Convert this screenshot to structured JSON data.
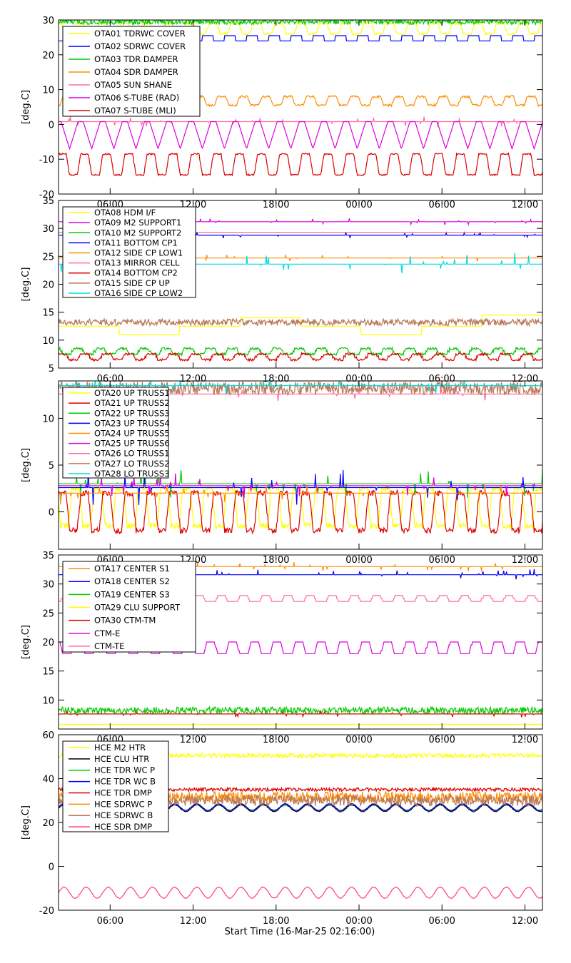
{
  "figure": {
    "xlabel": "Start Time (16-Mar-25 02:16:00)"
  },
  "chart_data": [
    {
      "type": "line",
      "ylabel": "[deg.C]",
      "ylim": [
        -20,
        30
      ],
      "yticks": [
        -20,
        -10,
        0,
        10,
        20,
        30
      ],
      "xlim": [
        0,
        35.0
      ],
      "xtick_positions": [
        3.733,
        9.733,
        15.733,
        21.733,
        27.733,
        33.733
      ],
      "xtick_labels": [
        "06:00",
        "12:00",
        "18:00",
        "00:00",
        "06:00",
        "12:00"
      ],
      "legend_position": "top-left",
      "series": [
        {
          "name": "OTA01 TDRWC COVER",
          "color": "#ffff00",
          "kind": "trap",
          "low": 26,
          "high": 29,
          "period": 1.6,
          "phase": 0.2,
          "noise": 0.3
        },
        {
          "name": "OTA02 SDRWC COVER",
          "color": "#0000ff",
          "kind": "square",
          "low": 24,
          "high": 25.5,
          "period": 1.6,
          "phase": 0.5,
          "noise": 0.0
        },
        {
          "name": "OTA03 TDR DAMPER",
          "color": "#00cc00",
          "kind": "noise",
          "base": 29.5,
          "amp": 0.8
        },
        {
          "name": "OTA04 SDR DAMPER",
          "color": "#ff8c00",
          "kind": "trap",
          "low": 5.5,
          "high": 8,
          "period": 1.6,
          "phase": 0.8,
          "noise": 0.3
        },
        {
          "name": "OTA05 SUN SHANE",
          "color": "#ff6ea0",
          "kind": "flat",
          "base": 0.8,
          "spikes": 0.8
        },
        {
          "name": "OTA06 S-TUBE (RAD)",
          "color": "#dd00dd",
          "kind": "vee",
          "low": -7,
          "high": 0.8,
          "period": 1.6,
          "phase": 0.0
        },
        {
          "name": "OTA07 S-TUBE (MLI)",
          "color": "#dd0000",
          "kind": "trap",
          "low": -14.5,
          "high": -8.5,
          "period": 1.6,
          "phase": 0.0,
          "noise": 0.2
        }
      ]
    },
    {
      "type": "line",
      "ylabel": "[deg.C]",
      "ylim": [
        5,
        35
      ],
      "yticks": [
        5,
        10,
        15,
        20,
        25,
        30,
        35
      ],
      "xlim": [
        0,
        35.0
      ],
      "xtick_positions": [
        3.733,
        9.733,
        15.733,
        21.733,
        27.733,
        33.733
      ],
      "xtick_labels": [
        "06:00",
        "12:00",
        "18:00",
        "00:00",
        "06:00",
        "12:00"
      ],
      "legend_position": "top-left",
      "series": [
        {
          "name": "OTA08 HDM I/F",
          "color": "#ffff00",
          "kind": "steps",
          "levels": [
            12.5,
            11,
            12.5,
            14,
            12.5,
            11,
            12.5,
            14.5
          ],
          "noise": 0.0
        },
        {
          "name": "OTA09 M2 SUPPORT1",
          "color": "#dd00dd",
          "kind": "flat",
          "base": 31.2,
          "spikes": 0.3
        },
        {
          "name": "OTA10 M2 SUPPORT2",
          "color": "#00cc00",
          "kind": "trap",
          "low": 7.5,
          "high": 8.5,
          "period": 1.6,
          "phase": 0.3,
          "noise": 0.2
        },
        {
          "name": "OTA11 BOTTOM CP1",
          "color": "#0000ff",
          "kind": "flat",
          "base": 28.8,
          "spikes": 0.3
        },
        {
          "name": "OTA12 SIDE CP LOW1",
          "color": "#ff8c00",
          "kind": "flat",
          "base": 24.7,
          "spikes": 0.3
        },
        {
          "name": "OTA13 MIRROR CELL",
          "color": "#ff6ea0",
          "kind": "flat",
          "base": 29.3,
          "spikes": 0.0
        },
        {
          "name": "OTA14 BOTTOM CP2",
          "color": "#dd0000",
          "kind": "trap",
          "low": 6.5,
          "high": 7.5,
          "period": 1.6,
          "phase": 0.0,
          "noise": 0.2
        },
        {
          "name": "OTA15 SIDE CP UP",
          "color": "#b87858",
          "kind": "noise",
          "base": 13.2,
          "amp": 0.6
        },
        {
          "name": "OTA16 SIDE CP LOW2",
          "color": "#00dddd",
          "kind": "flat",
          "base": 23.6,
          "spikes": 1.0
        }
      ]
    },
    {
      "type": "line",
      "ylabel": "[deg.C]",
      "ylim": [
        -4,
        14
      ],
      "yticks": [
        0,
        5,
        10
      ],
      "xlim": [
        0,
        35.0
      ],
      "xtick_positions": [
        3.733,
        9.733,
        15.733,
        21.733,
        27.733,
        33.733
      ],
      "xtick_labels": [
        "06:00",
        "12:00",
        "18:00",
        "00:00",
        "06:00",
        "12:00"
      ],
      "legend_position": "top-left",
      "series": [
        {
          "name": "OTA20 UP TRUSS1",
          "color": "#ffff00",
          "kind": "trap",
          "low": -1.5,
          "high": 2.5,
          "period": 1.6,
          "phase": 0.4,
          "noise": 0.3
        },
        {
          "name": "OTA21 UP TRUSS2",
          "color": "#dd0000",
          "kind": "trap",
          "low": -1.8,
          "high": 1.8,
          "period": 1.6,
          "phase": 0.0,
          "noise": 0.3
        },
        {
          "name": "OTA22 UP TRUSS3",
          "color": "#00cc00",
          "kind": "flat",
          "base": 3.0,
          "spikes": 0.8
        },
        {
          "name": "OTA23 UP TRUSS4",
          "color": "#0000ff",
          "kind": "flat",
          "base": 2.6,
          "spikes": 1.0
        },
        {
          "name": "OTA24 UP TRUSS5",
          "color": "#ff8c00",
          "kind": "flat",
          "base": 2.0,
          "spikes": 0.6
        },
        {
          "name": "OTA25 UP TRUSS6",
          "color": "#dd00dd",
          "kind": "flat",
          "base": 2.8,
          "spikes": 0.8
        },
        {
          "name": "OTA26 LO TRUSS1",
          "color": "#ff6ea0",
          "kind": "flat",
          "base": 12.6,
          "spikes": 0.4
        },
        {
          "name": "OTA27 LO TRUSS2",
          "color": "#b87858",
          "kind": "noise",
          "base": 13.2,
          "amp": 0.7
        },
        {
          "name": "OTA28 LO TRUSS3",
          "color": "#00dddd",
          "kind": "flat",
          "base": 13.5,
          "spikes": 0.5
        }
      ]
    },
    {
      "type": "line",
      "ylabel": "[deg.C]",
      "ylim": [
        5,
        35
      ],
      "yticks": [
        10,
        15,
        20,
        25,
        30,
        35
      ],
      "xlim": [
        0,
        35.0
      ],
      "xtick_positions": [
        3.733,
        9.733,
        15.733,
        21.733,
        27.733,
        33.733
      ],
      "xtick_labels": [
        "06:00",
        "12:00",
        "18:00",
        "00:00",
        "06:00",
        "12:00"
      ],
      "legend_position": "top-left",
      "series": [
        {
          "name": "OTA17 CENTER S1",
          "color": "#ff8c00",
          "kind": "flat",
          "base": 33.0,
          "spikes": 0.4
        },
        {
          "name": "OTA18 CENTER S2",
          "color": "#0000ff",
          "kind": "flat",
          "base": 31.6,
          "spikes": 0.5
        },
        {
          "name": "OTA19 CENTER S3",
          "color": "#00cc00",
          "kind": "noise",
          "base": 8.2,
          "amp": 0.6
        },
        {
          "name": "OTA29 CLU SUPPORT",
          "color": "#ffff00",
          "kind": "flat",
          "base": 5.8,
          "spikes": 0.0
        },
        {
          "name": "OTA30 CTM-TM",
          "color": "#dd0000",
          "kind": "flat",
          "base": 7.6,
          "spikes": 0.3
        },
        {
          "name": "CTM-E",
          "color": "#dd00dd",
          "kind": "trap",
          "low": 17.8,
          "high": 20,
          "period": 1.6,
          "phase": 0.3,
          "noise": 0.0
        },
        {
          "name": "CTM-TE",
          "color": "#ff6ea0",
          "kind": "trap",
          "low": 26.8,
          "high": 27.8,
          "period": 1.6,
          "phase": 0.8,
          "noise": 0.0
        }
      ]
    },
    {
      "type": "line",
      "ylabel": "[deg.C]",
      "ylim": [
        -20,
        60
      ],
      "yticks": [
        -20,
        0,
        20,
        40,
        60
      ],
      "xlim": [
        0,
        35.0
      ],
      "xtick_positions": [
        3.733,
        9.733,
        15.733,
        21.733,
        27.733,
        33.733
      ],
      "xtick_labels": [
        "06:00",
        "12:00",
        "18:00",
        "00:00",
        "06:00",
        "12:00"
      ],
      "legend_position": "top-left",
      "series": [
        {
          "name": "HCE M2 HTR",
          "color": "#ffff00",
          "kind": "noise",
          "base": 50.5,
          "amp": 1.0
        },
        {
          "name": "HCE CLU HTR",
          "color": "#000000",
          "kind": "sine",
          "base": 26.5,
          "amp": 1.5,
          "period": 1.6
        },
        {
          "name": "HCE TDR WC P",
          "color": "#00cc00",
          "kind": "sine",
          "base": 27.0,
          "amp": 1.5,
          "period": 1.6
        },
        {
          "name": "HCE TDR WC B",
          "color": "#0000ff",
          "kind": "sine",
          "base": 27.0,
          "amp": 1.5,
          "period": 1.6
        },
        {
          "name": "HCE TDR DMP",
          "color": "#dd0000",
          "kind": "noise",
          "base": 35.0,
          "amp": 0.8
        },
        {
          "name": "HCE SDRWC P",
          "color": "#ff8c00",
          "kind": "noise",
          "base": 31.5,
          "amp": 2.5
        },
        {
          "name": "HCE SDRWC B",
          "color": "#b87858",
          "kind": "noise",
          "base": 30.0,
          "amp": 2.5
        },
        {
          "name": "HCE SDR DMP",
          "color": "#ff3c8c",
          "kind": "sine",
          "base": -12.0,
          "amp": 2.5,
          "period": 1.6
        }
      ]
    }
  ]
}
